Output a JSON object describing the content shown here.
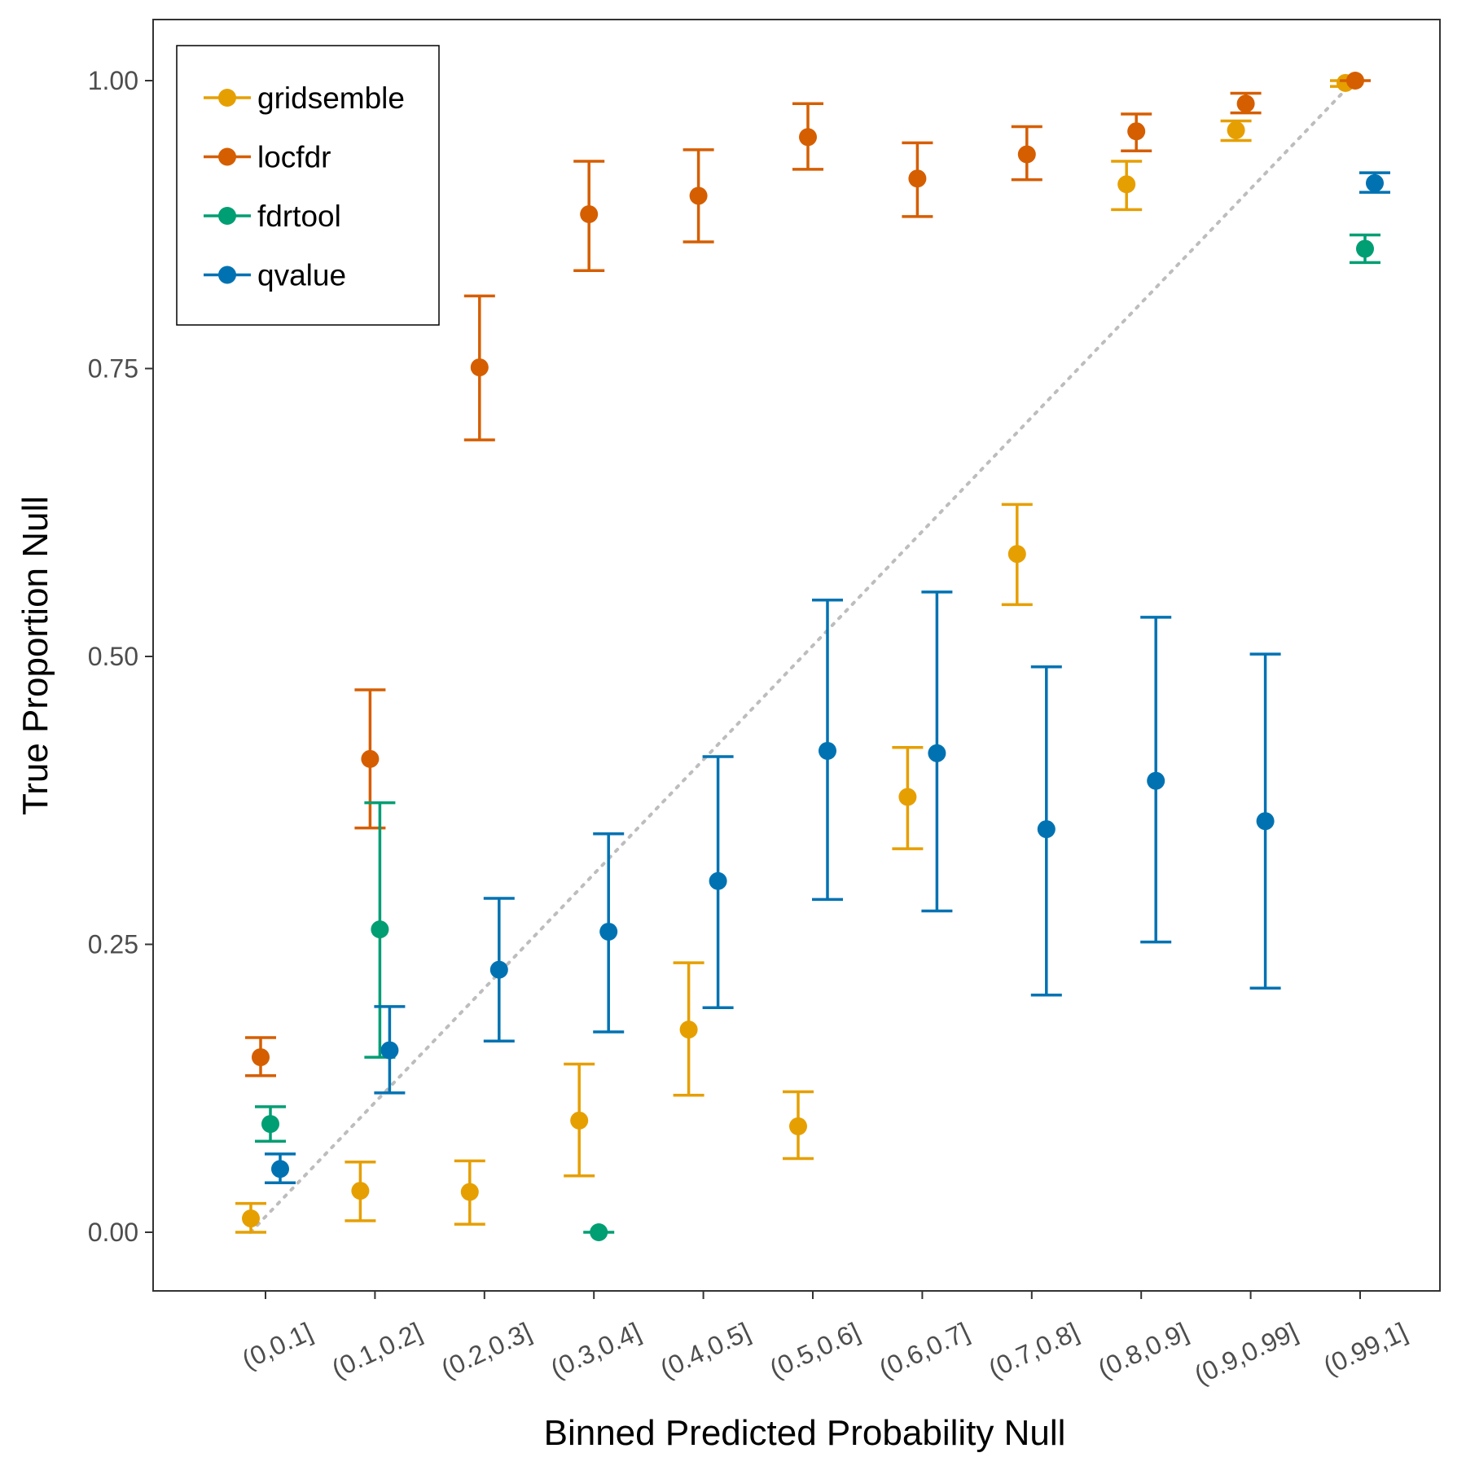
{
  "chart_data": {
    "type": "scatter",
    "title": "",
    "xlabel": "Binned Predicted Probability Null",
    "ylabel": "True Proportion Null",
    "categories": [
      "(0,0.1]",
      "(0.1,0.2]",
      "(0.2,0.3]",
      "(0.3,0.4]",
      "(0.4,0.5]",
      "(0.5,0.6]",
      "(0.6,0.7]",
      "(0.7,0.8]",
      "(0.8,0.9]",
      "(0.9,0.99]",
      "(0.99,1]"
    ],
    "y_ticks": [
      "0.00",
      "0.25",
      "0.50",
      "0.75",
      "1.00"
    ],
    "ylim": [
      -0.05,
      1.05
    ],
    "grid": false,
    "legend_position": "top-left",
    "error_bars": true,
    "reference_line": {
      "style": "dotted",
      "color": "#bdbdbd",
      "from": [
        0.05,
        0
      ],
      "to": [
        0.995,
        1
      ]
    },
    "series": [
      {
        "name": "gridsemble",
        "color": "#E69F00",
        "values": [
          0.012,
          0.036,
          0.035,
          0.097,
          0.176,
          0.092,
          0.378,
          0.589,
          0.91,
          0.957,
          0.998
        ],
        "lower": [
          0.0,
          0.01,
          0.007,
          0.049,
          0.119,
          0.064,
          0.333,
          0.545,
          0.888,
          0.948,
          0.995
        ],
        "upper": [
          0.025,
          0.061,
          0.062,
          0.146,
          0.234,
          0.122,
          0.421,
          0.632,
          0.93,
          0.965,
          1.0
        ]
      },
      {
        "name": "locfdr",
        "color": "#D55E00",
        "values": [
          0.152,
          0.411,
          0.751,
          0.884,
          0.9,
          0.951,
          0.915,
          0.936,
          0.956,
          0.98,
          1.0
        ],
        "lower": [
          0.136,
          0.351,
          0.688,
          0.835,
          0.86,
          0.923,
          0.882,
          0.914,
          0.939,
          0.972,
          1.0
        ],
        "upper": [
          0.169,
          0.471,
          0.813,
          0.93,
          0.94,
          0.98,
          0.946,
          0.96,
          0.971,
          0.989,
          1.0
        ]
      },
      {
        "name": "fdrtool",
        "color": "#009E73",
        "values": [
          0.094,
          0.263,
          null,
          0.0,
          null,
          null,
          null,
          null,
          null,
          null,
          0.854
        ],
        "lower": [
          0.079,
          0.152,
          null,
          0.0,
          null,
          null,
          null,
          null,
          null,
          null,
          0.842
        ],
        "upper": [
          0.109,
          0.373,
          null,
          0.0,
          null,
          null,
          null,
          null,
          null,
          null,
          0.866
        ]
      },
      {
        "name": "qvalue",
        "color": "#0072B2",
        "values": [
          0.055,
          0.158,
          0.228,
          0.261,
          0.305,
          0.418,
          0.416,
          0.35,
          0.392,
          0.357,
          0.911
        ],
        "lower": [
          0.043,
          0.121,
          0.166,
          0.174,
          0.195,
          0.289,
          0.279,
          0.206,
          0.252,
          0.212,
          0.903
        ],
        "upper": [
          0.068,
          0.196,
          0.29,
          0.346,
          0.413,
          0.549,
          0.556,
          0.491,
          0.534,
          0.502,
          0.92
        ]
      }
    ]
  }
}
